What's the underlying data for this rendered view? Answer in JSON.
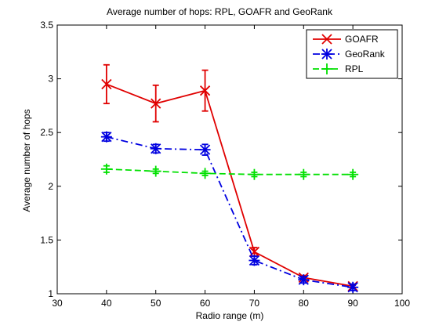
{
  "chart_data": {
    "type": "line",
    "title": "Average number of hops: RPL, GOAFR and GeoRank",
    "xlabel": "Radio range (m)",
    "ylabel": "Average number of hops",
    "xlim": [
      30,
      100
    ],
    "ylim": [
      1,
      3.5
    ],
    "xticks": [
      30,
      40,
      50,
      60,
      70,
      80,
      90,
      100
    ],
    "yticks": [
      1,
      1.5,
      2,
      2.5,
      3,
      3.5
    ],
    "grid": false,
    "legend_position": "top-right",
    "x": [
      40,
      50,
      60,
      70,
      80,
      90
    ],
    "series": [
      {
        "name": "GOAFR",
        "values": [
          2.95,
          2.77,
          2.89,
          1.39,
          1.15,
          1.07
        ],
        "error": [
          0.18,
          0.17,
          0.19,
          0.04,
          0.02,
          0.01
        ],
        "color": "#e00000",
        "marker": "x",
        "line_style": "solid"
      },
      {
        "name": "GeoRank",
        "values": [
          2.46,
          2.35,
          2.34,
          1.31,
          1.13,
          1.06
        ],
        "error": [
          0.04,
          0.04,
          0.05,
          0.04,
          0.03,
          0.03
        ],
        "color": "#0000e0",
        "marker": "asterisk",
        "line_style": "dashdot"
      },
      {
        "name": "RPL",
        "values": [
          2.16,
          2.14,
          2.12,
          2.11,
          2.11,
          2.11
        ],
        "error": [
          0.03,
          0.02,
          0.02,
          0.02,
          0.02,
          0.02
        ],
        "color": "#00e000",
        "marker": "plus",
        "line_style": "dashed"
      }
    ]
  }
}
